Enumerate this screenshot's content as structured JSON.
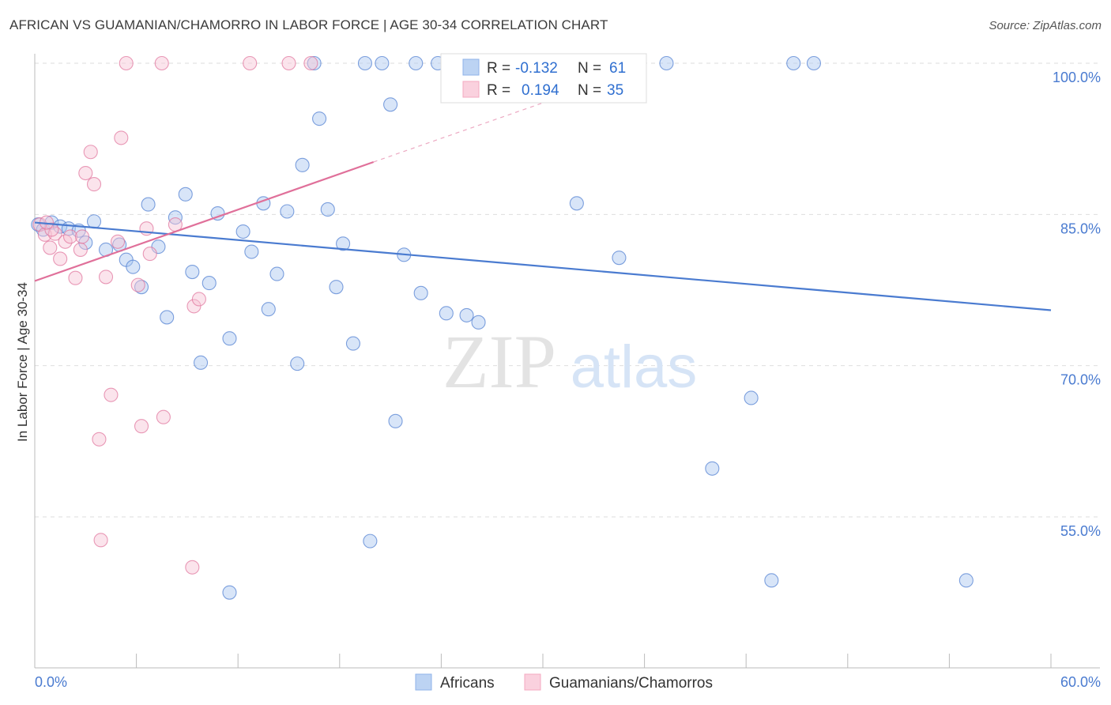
{
  "title": "AFRICAN VS GUAMANIAN/CHAMORRO IN LABOR FORCE | AGE 30-34 CORRELATION CHART",
  "source": "Source: ZipAtlas.com",
  "watermark": {
    "zip": "ZIP",
    "atlas": "atlas"
  },
  "legend": {
    "rows": [
      {
        "r_label": "R =",
        "r_value": "-0.132",
        "n_label": "N =",
        "n_value": "61",
        "color": "#8fb3ea"
      },
      {
        "r_label": "R =",
        "r_value": "0.194",
        "n_label": "N =",
        "n_value": "35",
        "color": "#f4a9c0"
      }
    ]
  },
  "bottom_legend": [
    {
      "label": "Africans",
      "color": "#8fb3ea"
    },
    {
      "label": "Guamanians/Chamorros",
      "color": "#f4a9c0"
    }
  ],
  "chart_data": {
    "type": "scatter",
    "ylabel": "In Labor Force | Age 30-34",
    "xlim": [
      0,
      60
    ],
    "ylim": [
      42,
      102
    ],
    "x_tick_labels": {
      "left": "0.0%",
      "right": "60.0%"
    },
    "y_ticks": [
      {
        "value": 100,
        "label": "100.0%"
      },
      {
        "value": 85,
        "label": "85.0%"
      },
      {
        "value": 70,
        "label": "70.0%"
      },
      {
        "value": 55,
        "label": "55.0%"
      }
    ],
    "series": [
      {
        "name": "Africans",
        "color": "#4a7bd0",
        "fill": "#a9c6f0",
        "trend": {
          "x0": 0,
          "y0": 84.2,
          "x1": 60,
          "y1": 75.5,
          "dashed_to": null
        },
        "points": [
          [
            0.2,
            84.0
          ],
          [
            0.5,
            83.5
          ],
          [
            1.0,
            84.2
          ],
          [
            1.5,
            83.8
          ],
          [
            2.0,
            83.6
          ],
          [
            2.6,
            83.4
          ],
          [
            3.5,
            84.3
          ],
          [
            3.0,
            82.2
          ],
          [
            4.2,
            81.5
          ],
          [
            5.0,
            82.0
          ],
          [
            5.4,
            80.5
          ],
          [
            5.8,
            79.8
          ],
          [
            6.3,
            77.8
          ],
          [
            6.7,
            86.0
          ],
          [
            7.3,
            81.8
          ],
          [
            7.8,
            74.8
          ],
          [
            8.3,
            84.7
          ],
          [
            8.9,
            87.0
          ],
          [
            9.3,
            79.3
          ],
          [
            9.8,
            70.3
          ],
          [
            10.3,
            78.2
          ],
          [
            10.8,
            85.1
          ],
          [
            11.5,
            72.7
          ],
          [
            12.3,
            83.3
          ],
          [
            12.8,
            81.3
          ],
          [
            13.5,
            86.1
          ],
          [
            13.8,
            75.6
          ],
          [
            14.3,
            79.1
          ],
          [
            14.9,
            85.3
          ],
          [
            15.5,
            70.2
          ],
          [
            15.8,
            89.9
          ],
          [
            16.5,
            100.0
          ],
          [
            16.8,
            94.5
          ],
          [
            17.3,
            85.5
          ],
          [
            17.8,
            77.8
          ],
          [
            18.2,
            82.1
          ],
          [
            18.8,
            72.2
          ],
          [
            19.5,
            100.0
          ],
          [
            19.8,
            52.6
          ],
          [
            20.5,
            100.0
          ],
          [
            21.0,
            95.9
          ],
          [
            21.3,
            64.5
          ],
          [
            21.8,
            81.0
          ],
          [
            22.5,
            100.0
          ],
          [
            22.8,
            77.2
          ],
          [
            23.8,
            100.0
          ],
          [
            24.3,
            75.2
          ],
          [
            25.5,
            75.0
          ],
          [
            26.2,
            74.3
          ],
          [
            28.5,
            100.0
          ],
          [
            31.5,
            100.0
          ],
          [
            32.0,
            86.1
          ],
          [
            34.5,
            80.7
          ],
          [
            37.3,
            100.0
          ],
          [
            40.0,
            59.8
          ],
          [
            42.3,
            66.8
          ],
          [
            43.5,
            48.7
          ],
          [
            44.8,
            100.0
          ],
          [
            46.0,
            100.0
          ],
          [
            55.0,
            48.7
          ],
          [
            11.5,
            47.5
          ]
        ]
      },
      {
        "name": "Guamanians/Chamorros",
        "color": "#e0709a",
        "fill": "#f7c3d4",
        "trend": {
          "x0": 0,
          "y0": 78.4,
          "x1": 20,
          "y1": 90.2,
          "dashed_to": {
            "x": 35,
            "y": 99.0
          }
        },
        "points": [
          [
            0.3,
            84.0
          ],
          [
            0.6,
            83.0
          ],
          [
            0.9,
            81.7
          ],
          [
            1.2,
            83.1
          ],
          [
            1.5,
            80.6
          ],
          [
            1.8,
            82.3
          ],
          [
            2.1,
            82.8
          ],
          [
            2.4,
            78.7
          ],
          [
            2.7,
            81.5
          ],
          [
            3.0,
            89.1
          ],
          [
            3.3,
            91.2
          ],
          [
            3.5,
            88.0
          ],
          [
            3.8,
            62.7
          ],
          [
            3.9,
            52.7
          ],
          [
            4.2,
            78.8
          ],
          [
            4.5,
            67.1
          ],
          [
            4.9,
            82.3
          ],
          [
            5.1,
            92.6
          ],
          [
            5.4,
            100.0
          ],
          [
            6.1,
            78.0
          ],
          [
            6.3,
            64.0
          ],
          [
            6.6,
            83.6
          ],
          [
            6.8,
            81.1
          ],
          [
            7.5,
            100.0
          ],
          [
            7.6,
            64.9
          ],
          [
            8.3,
            84.0
          ],
          [
            9.3,
            50.0
          ],
          [
            9.4,
            75.9
          ],
          [
            9.7,
            76.6
          ],
          [
            12.7,
            100.0
          ],
          [
            15.0,
            100.0
          ],
          [
            16.3,
            100.0
          ],
          [
            2.8,
            82.8
          ],
          [
            1.0,
            83.5
          ],
          [
            0.7,
            84.2
          ]
        ]
      }
    ]
  }
}
